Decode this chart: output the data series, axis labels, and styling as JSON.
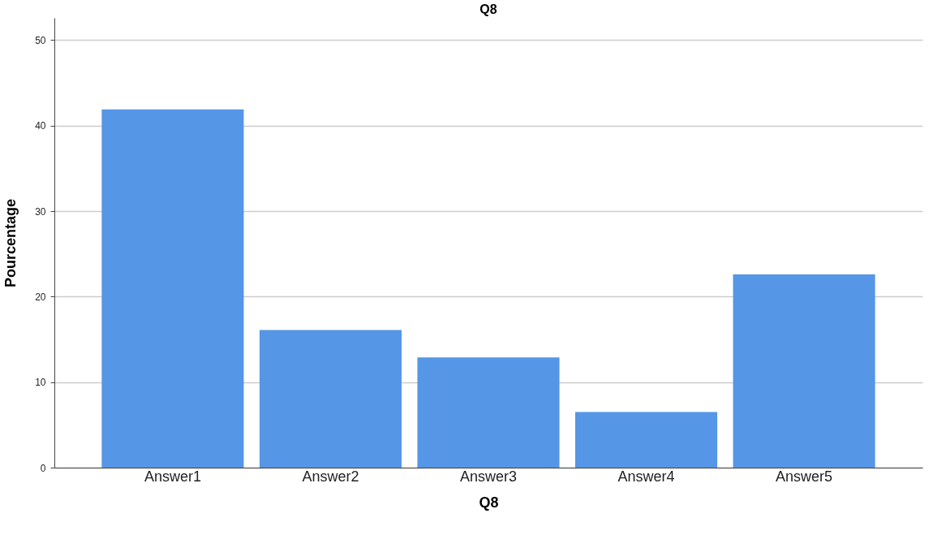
{
  "chart_data": {
    "type": "bar",
    "title": "Q8",
    "xlabel": "Q8",
    "ylabel": "Pourcentage",
    "categories": [
      "Answer1",
      "Answer2",
      "Answer3",
      "Answer4",
      "Answer5"
    ],
    "values": [
      41.9,
      16.1,
      12.9,
      6.5,
      22.6
    ],
    "color": "#5596e6",
    "ylim": [
      0,
      52.6
    ],
    "yticks": [
      0,
      10,
      20,
      30,
      40,
      50
    ],
    "grid": "y"
  }
}
